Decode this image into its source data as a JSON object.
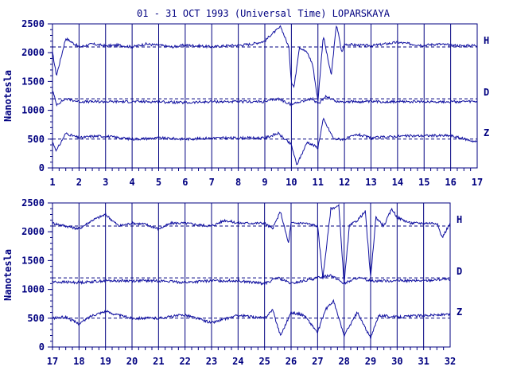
{
  "title": "01 - 31 OCT 1993 (Universal Time) LOPARSKAYA",
  "ylabel": "Nanotesla",
  "colors": {
    "ink": "#000080",
    "trace": "#1010a0"
  },
  "chart_data": [
    {
      "type": "line",
      "xlabel": "",
      "ylabel": "Nanotesla",
      "xlim": [
        1,
        17
      ],
      "ylim": [
        0,
        2500
      ],
      "xticks": [
        "1",
        "2",
        "3",
        "4",
        "5",
        "6",
        "7",
        "8",
        "9",
        "10",
        "11",
        "12",
        "13",
        "14",
        "15",
        "16",
        "17"
      ],
      "yticks": [
        "0",
        "500",
        "1000",
        "1500",
        "2000",
        "2500"
      ],
      "grid": "vertical-day-lines",
      "baselines": [
        2100,
        1200,
        500
      ],
      "series": [
        {
          "name": "H",
          "x": [
            1,
            1.15,
            1.5,
            2,
            2.5,
            3,
            3.5,
            4,
            4.5,
            5,
            5.5,
            6,
            6.5,
            7,
            7.5,
            8,
            8.5,
            9,
            9.2,
            9.6,
            9.9,
            10,
            10.1,
            10.3,
            10.6,
            10.8,
            11,
            11.2,
            11.5,
            11.7,
            11.9,
            12,
            12.5,
            13,
            13.5,
            14,
            14.5,
            15,
            15.5,
            16,
            16.5,
            17
          ],
          "values": [
            2000,
            1600,
            2250,
            2100,
            2150,
            2120,
            2130,
            2100,
            2150,
            2130,
            2100,
            2130,
            2120,
            2100,
            2120,
            2130,
            2150,
            2200,
            2300,
            2450,
            2100,
            1500,
            1400,
            2100,
            2000,
            1800,
            1150,
            2300,
            1600,
            2500,
            2000,
            2150,
            2130,
            2120,
            2150,
            2180,
            2150,
            2130,
            2150,
            2130,
            2120,
            2130
          ]
        },
        {
          "name": "D",
          "x": [
            1,
            1.15,
            1.5,
            2,
            3,
            4,
            5,
            6,
            7,
            8,
            9,
            9.5,
            10,
            10.3,
            10.8,
            11,
            11.3,
            11.7,
            12,
            13,
            14,
            15,
            16,
            17
          ],
          "values": [
            1350,
            1100,
            1200,
            1150,
            1150,
            1150,
            1150,
            1130,
            1150,
            1150,
            1150,
            1200,
            1100,
            1150,
            1200,
            1100,
            1250,
            1150,
            1150,
            1150,
            1150,
            1150,
            1150,
            1150
          ]
        },
        {
          "name": "Z",
          "x": [
            1,
            1.15,
            1.5,
            2,
            2.5,
            3,
            4,
            5,
            6,
            7,
            8,
            9,
            9.5,
            10,
            10.2,
            10.6,
            11,
            11.2,
            11.6,
            12,
            12.5,
            13,
            14,
            15,
            16,
            17
          ],
          "values": [
            450,
            300,
            600,
            520,
            550,
            550,
            500,
            520,
            500,
            520,
            520,
            520,
            600,
            400,
            50,
            450,
            350,
            850,
            500,
            500,
            580,
            520,
            550,
            560,
            560,
            450
          ]
        }
      ]
    },
    {
      "type": "line",
      "xlabel": "",
      "ylabel": "Nanotesla",
      "xlim": [
        17,
        32
      ],
      "ylim": [
        0,
        2500
      ],
      "xticks": [
        "17",
        "18",
        "19",
        "20",
        "21",
        "22",
        "23",
        "24",
        "25",
        "26",
        "27",
        "28",
        "29",
        "30",
        "31",
        "32"
      ],
      "yticks": [
        "0",
        "500",
        "1000",
        "1500",
        "2000",
        "2500"
      ],
      "grid": "vertical-day-lines",
      "baselines": [
        2100,
        1200,
        500
      ],
      "series": [
        {
          "name": "H",
          "x": [
            17,
            17.5,
            18,
            18.5,
            19,
            19.5,
            20,
            20.5,
            21,
            21.5,
            22,
            22.5,
            23,
            23.5,
            24,
            24.5,
            25,
            25.3,
            25.6,
            25.9,
            26,
            26.5,
            27,
            27.2,
            27.5,
            27.8,
            28,
            28.2,
            28.5,
            28.8,
            29,
            29.2,
            29.5,
            29.8,
            30,
            30.5,
            31,
            31.5,
            31.7,
            32
          ],
          "values": [
            2150,
            2100,
            2050,
            2200,
            2300,
            2100,
            2150,
            2130,
            2050,
            2150,
            2150,
            2120,
            2100,
            2200,
            2150,
            2150,
            2150,
            2050,
            2350,
            1800,
            2150,
            2150,
            2100,
            1200,
            2400,
            2450,
            1100,
            2100,
            2200,
            2350,
            1200,
            2250,
            2100,
            2400,
            2250,
            2150,
            2150,
            2150,
            1900,
            2150
          ]
        },
        {
          "name": "D",
          "x": [
            17,
            18,
            19,
            20,
            21,
            22,
            23,
            24,
            25,
            25.5,
            26,
            26.5,
            27,
            27.5,
            28,
            28.5,
            29,
            29.5,
            30,
            31,
            31.8,
            32
          ],
          "values": [
            1130,
            1120,
            1150,
            1150,
            1150,
            1120,
            1150,
            1150,
            1100,
            1200,
            1100,
            1150,
            1200,
            1250,
            1100,
            1200,
            1150,
            1150,
            1150,
            1150,
            1180,
            1150
          ]
        },
        {
          "name": "Z",
          "x": [
            17,
            17.5,
            18,
            18.5,
            19,
            19.5,
            20,
            21,
            22,
            23,
            24,
            25,
            25.3,
            25.6,
            26,
            26.5,
            27,
            27.3,
            27.6,
            28,
            28.5,
            29,
            29.3,
            30,
            31,
            32
          ],
          "values": [
            500,
            520,
            400,
            550,
            620,
            550,
            500,
            500,
            560,
            420,
            550,
            500,
            650,
            200,
            600,
            550,
            250,
            650,
            800,
            200,
            600,
            150,
            550,
            520,
            550,
            560
          ]
        }
      ]
    }
  ]
}
